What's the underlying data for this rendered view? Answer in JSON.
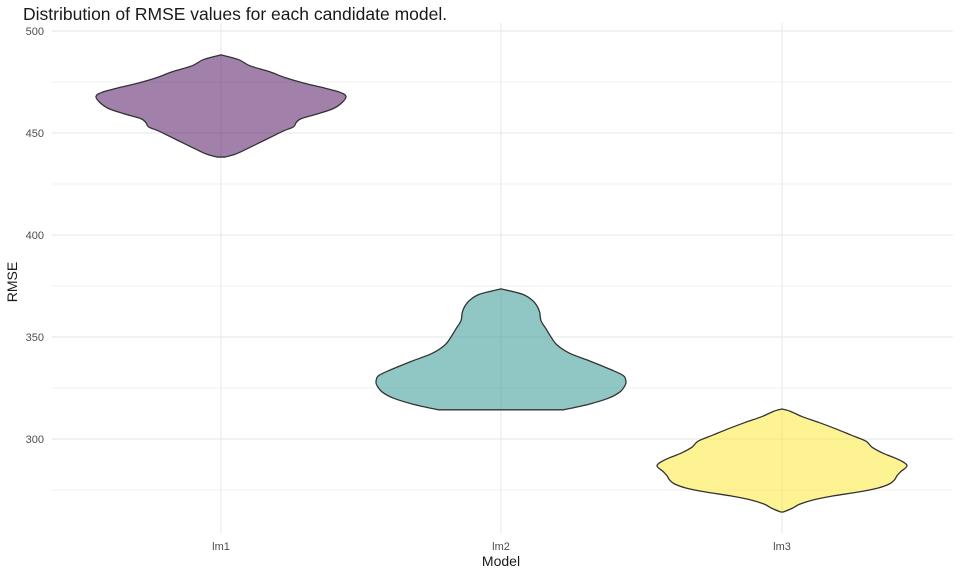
{
  "chart_data": {
    "type": "violin",
    "title": "Distribution of RMSE values for each candidate model.",
    "xlabel": "Model",
    "ylabel": "RMSE",
    "ylim": [
      253,
      500
    ],
    "yticks": [
      300,
      350,
      400,
      450,
      500
    ],
    "grid": true,
    "legend": "none",
    "categories": [
      "lm1",
      "lm2",
      "lm3"
    ],
    "series": [
      {
        "category": "lm1",
        "color": "#440154",
        "range": [
          438.2,
          488.3
        ],
        "density": [
          [
            438.2,
            0.03
          ],
          [
            439.5,
            0.11
          ],
          [
            442,
            0.2
          ],
          [
            445,
            0.3
          ],
          [
            448,
            0.4
          ],
          [
            451,
            0.5
          ],
          [
            453,
            0.58
          ],
          [
            455,
            0.6
          ],
          [
            457,
            0.64
          ],
          [
            459.5,
            0.78
          ],
          [
            462,
            0.9
          ],
          [
            465,
            0.97
          ],
          [
            468,
            1.0
          ],
          [
            470,
            0.95
          ],
          [
            472,
            0.83
          ],
          [
            474.5,
            0.66
          ],
          [
            477,
            0.52
          ],
          [
            480,
            0.39
          ],
          [
            483,
            0.23
          ],
          [
            486,
            0.14
          ],
          [
            488.3,
            0.0
          ]
        ]
      },
      {
        "category": "lm2",
        "color": "#21908C",
        "range": [
          314.3,
          373.6
        ],
        "density": [
          [
            314.3,
            0.5
          ],
          [
            317,
            0.7
          ],
          [
            320,
            0.86
          ],
          [
            323,
            0.95
          ],
          [
            326,
            0.99
          ],
          [
            328,
            1.0
          ],
          [
            331,
            0.98
          ],
          [
            334,
            0.88
          ],
          [
            338,
            0.72
          ],
          [
            342,
            0.55
          ],
          [
            346,
            0.45
          ],
          [
            350,
            0.4
          ],
          [
            354,
            0.36
          ],
          [
            358,
            0.32
          ],
          [
            362,
            0.31
          ],
          [
            365,
            0.29
          ],
          [
            368,
            0.25
          ],
          [
            371,
            0.17
          ],
          [
            373.6,
            0.0
          ]
        ]
      },
      {
        "category": "lm3",
        "color": "#FDE725",
        "range": [
          264.2,
          314.7
        ],
        "density": [
          [
            264.2,
            0.01
          ],
          [
            266,
            0.08
          ],
          [
            268,
            0.14
          ],
          [
            270,
            0.24
          ],
          [
            272,
            0.4
          ],
          [
            274,
            0.61
          ],
          [
            276,
            0.77
          ],
          [
            278,
            0.86
          ],
          [
            280,
            0.9
          ],
          [
            282,
            0.92
          ],
          [
            284,
            0.95
          ],
          [
            287,
            1.0
          ],
          [
            290,
            0.93
          ],
          [
            293,
            0.81
          ],
          [
            296,
            0.72
          ],
          [
            299,
            0.67
          ],
          [
            302,
            0.55
          ],
          [
            305,
            0.43
          ],
          [
            308,
            0.3
          ],
          [
            311,
            0.16
          ],
          [
            313.5,
            0.07
          ],
          [
            314.7,
            0.0
          ]
        ]
      }
    ]
  }
}
